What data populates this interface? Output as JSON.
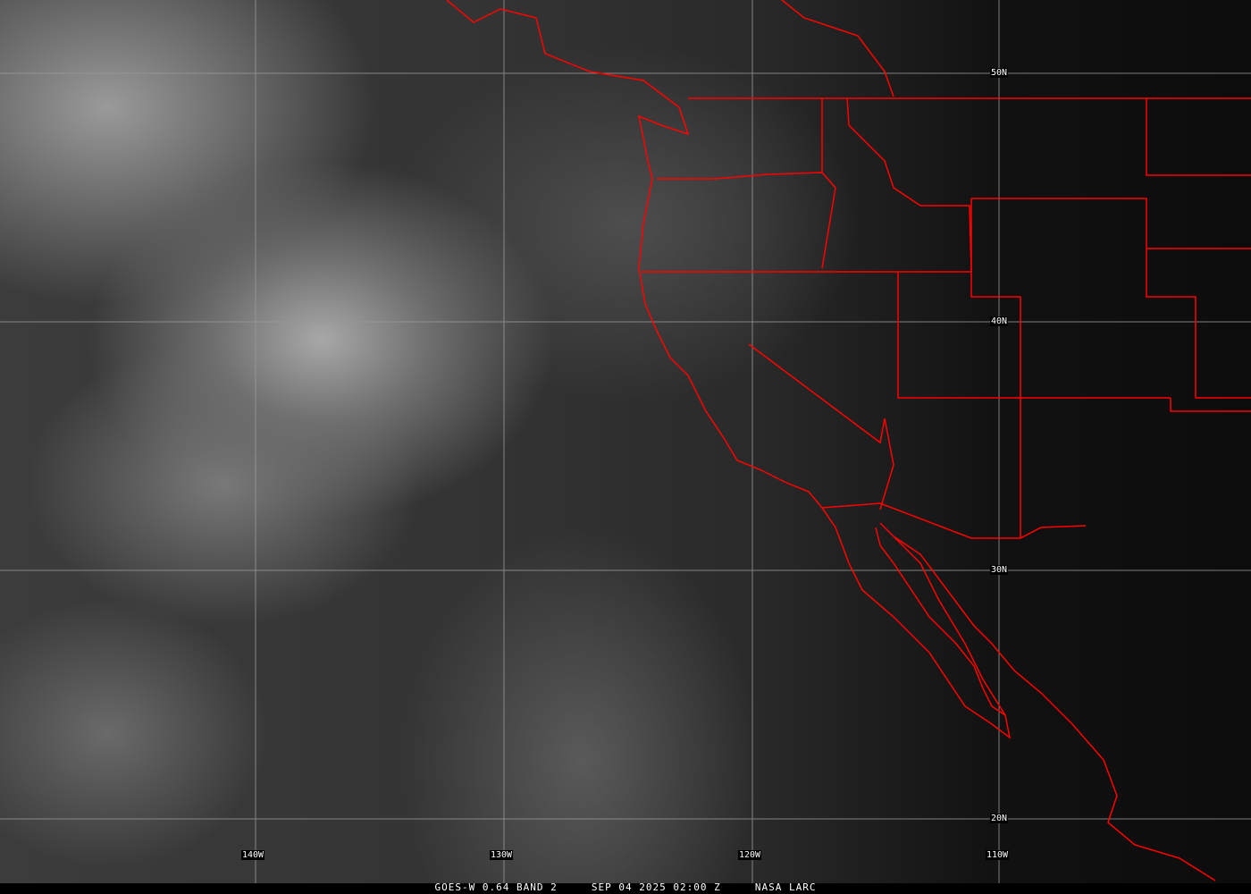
{
  "caption": {
    "product": "GOES-W 0.64 BAND 2",
    "datetime": "SEP 04 2025 02:00 Z",
    "source": "NASA LARC"
  },
  "grid": {
    "latitude_labels": [
      "50N",
      "40N",
      "30N",
      "20N"
    ],
    "longitude_labels": [
      "140W",
      "130W",
      "120W",
      "110W"
    ],
    "grid_color": "#9a9a9a"
  },
  "colors": {
    "borders": "#ff0000",
    "labels": "#ffffff"
  }
}
